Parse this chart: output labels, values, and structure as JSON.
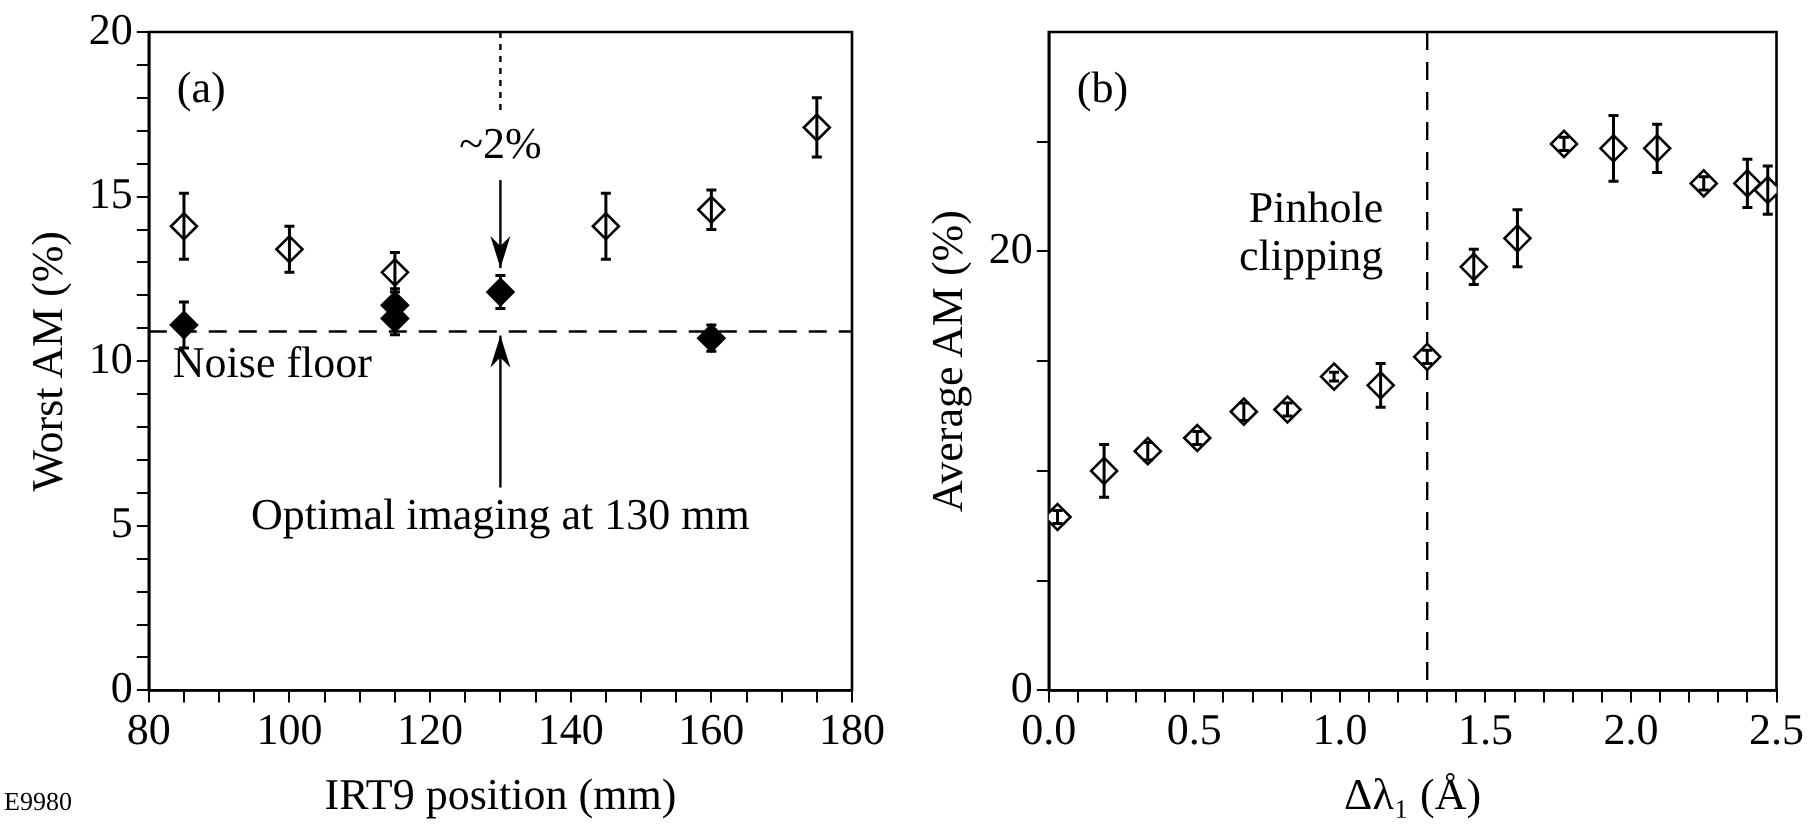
{
  "chart_data": [
    {
      "type": "scatter",
      "xlabel": "IRT9 position (mm)",
      "ylabel": "Worst AM (%)",
      "marker": "diamond",
      "xlim": [
        80,
        180
      ],
      "ylim": [
        0,
        20
      ],
      "xticks": [
        80,
        {
          "value": 85,
          "label": null
        },
        {
          "value": 90,
          "label": null
        },
        {
          "value": 95,
          "label": null
        },
        100,
        {
          "value": 105,
          "label": null
        },
        {
          "value": 110,
          "label": null
        },
        {
          "value": 115,
          "label": null
        },
        120,
        {
          "value": 125,
          "label": null
        },
        {
          "value": 130,
          "label": null
        },
        {
          "value": 135,
          "label": null
        },
        140,
        {
          "value": 145,
          "label": null
        },
        {
          "value": 150,
          "label": null
        },
        {
          "value": 155,
          "label": null
        },
        160,
        {
          "value": 165,
          "label": null
        },
        {
          "value": 170,
          "label": null
        },
        {
          "value": 175,
          "label": null
        },
        180
      ],
      "yticks": [
        0,
        {
          "value": 1,
          "label": null
        },
        {
          "value": 2,
          "label": null
        },
        {
          "value": 3,
          "label": null
        },
        {
          "value": 4,
          "label": null
        },
        5,
        {
          "value": 6,
          "label": null
        },
        {
          "value": 7,
          "label": null
        },
        {
          "value": 8,
          "label": null
        },
        {
          "value": 9,
          "label": null
        },
        10,
        {
          "value": 11,
          "label": null
        },
        {
          "value": 12,
          "label": null
        },
        {
          "value": 13,
          "label": null
        },
        {
          "value": 14,
          "label": null
        },
        15,
        {
          "value": 16,
          "label": null
        },
        {
          "value": 17,
          "label": null
        },
        {
          "value": 18,
          "label": null
        },
        {
          "value": 19,
          "label": null
        },
        20
      ],
      "series": [
        {
          "color": "#000000",
          "x": [
            85,
            100,
            115,
            145,
            160,
            175
          ],
          "values": [
            14.1,
            13.4,
            12.7,
            14.1,
            14.6,
            17.1
          ],
          "errors": [
            1.0,
            0.7,
            0.6,
            1.0,
            0.6,
            0.9
          ]
        },
        {
          "color": "#000000",
          "x": [
            85,
            115,
            115,
            130,
            160
          ],
          "values": [
            11.1,
            11.7,
            11.3,
            12.1,
            10.7
          ],
          "errors": [
            0.7,
            0.5,
            0.5,
            0.5,
            0.4
          ]
        }
      ],
      "ref_lines": [
        {
          "axis": "y",
          "value": 10.9,
          "label": "Noise floor",
          "line_style": "dashed",
          "color": "#000000"
        }
      ],
      "annotations": [
        "(a)",
        {
          "text": "~2%",
          "x": 130,
          "y": 12.1
        },
        {
          "text": "Optimal imaging at 130 mm",
          "x": 130,
          "y": 10.9
        },
        "E9980"
      ]
    },
    {
      "type": "scatter",
      "xlabel": "Δλ₁ (Å)",
      "ylabel": "Average AM (%)",
      "marker": "diamond",
      "xlim": [
        0,
        2.5
      ],
      "ylim": [
        0,
        30
      ],
      "xticks": [
        {
          "value": 0,
          "label": "0.0"
        },
        {
          "value": 0.1,
          "label": null
        },
        {
          "value": 0.2,
          "label": null
        },
        {
          "value": 0.3,
          "label": null
        },
        {
          "value": 0.4,
          "label": null
        },
        0.5,
        {
          "value": 0.6,
          "label": null
        },
        {
          "value": 0.7,
          "label": null
        },
        {
          "value": 0.8,
          "label": null
        },
        {
          "value": 0.9,
          "label": null
        },
        {
          "value": 1,
          "label": "1.0"
        },
        {
          "value": 1.1,
          "label": null
        },
        {
          "value": 1.2,
          "label": null
        },
        {
          "value": 1.3,
          "label": null
        },
        {
          "value": 1.4,
          "label": null
        },
        1.5,
        {
          "value": 1.6,
          "label": null
        },
        {
          "value": 1.7,
          "label": null
        },
        {
          "value": 1.8,
          "label": null
        },
        {
          "value": 1.9,
          "label": null
        },
        {
          "value": 2,
          "label": "2.0"
        },
        {
          "value": 2.1,
          "label": null
        },
        {
          "value": 2.2,
          "label": null
        },
        {
          "value": 2.3,
          "label": null
        },
        {
          "value": 2.4,
          "label": null
        },
        2.5
      ],
      "yticks": [
        0,
        {
          "value": 5,
          "label": null
        },
        {
          "value": 10,
          "label": null
        },
        {
          "value": 15,
          "label": null
        },
        20,
        {
          "value": 25,
          "label": null
        }
      ],
      "series": [
        {
          "color": "#000000",
          "x": [
            0.03,
            0.19,
            0.34,
            0.51,
            0.67,
            0.82,
            0.98,
            1.14,
            1.3,
            1.46,
            1.61,
            1.77,
            1.94,
            2.09,
            2.25,
            2.4,
            2.47
          ],
          "values": [
            7.9,
            10.0,
            10.9,
            11.5,
            12.7,
            12.8,
            14.3,
            13.9,
            15.2,
            19.3,
            20.6,
            24.9,
            24.7,
            24.7,
            23.1,
            23.1,
            22.8
          ],
          "errors": [
            0.3,
            1.2,
            0.4,
            0.3,
            0.4,
            0.3,
            0.2,
            1.0,
            0.3,
            0.8,
            1.3,
            0.3,
            1.5,
            1.1,
            0.3,
            1.1,
            1.1
          ]
        }
      ],
      "ref_lines": [
        {
          "axis": "x",
          "value": 1.3,
          "label": "Pinhole clipping",
          "line_style": "dashed",
          "color": "#000000"
        }
      ],
      "annotations": [
        "(b)"
      ]
    }
  ]
}
